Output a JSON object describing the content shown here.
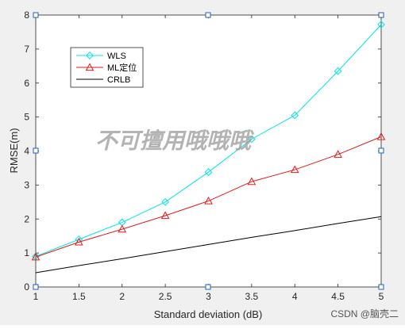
{
  "chart_data": {
    "type": "line",
    "xlabel": "Standard deviation (dB)",
    "ylabel": "RMSE(m)",
    "xlim": [
      1,
      5
    ],
    "ylim": [
      0,
      8
    ],
    "xticks": [
      "1",
      "1.5",
      "2",
      "2.5",
      "3",
      "3.5",
      "4",
      "4.5",
      "5"
    ],
    "yticks": [
      "0",
      "1",
      "2",
      "3",
      "4",
      "5",
      "6",
      "7",
      "8"
    ],
    "grid": false,
    "legend_position": "top-left",
    "x": [
      1,
      1.5,
      2,
      2.5,
      3,
      3.5,
      4,
      4.5,
      5
    ],
    "series": [
      {
        "name": "WLS",
        "color": "#00e5e5",
        "marker": "diamond",
        "values": [
          0.9,
          1.4,
          1.9,
          2.5,
          3.38,
          4.35,
          5.05,
          6.35,
          7.72
        ]
      },
      {
        "name": "ML定位",
        "color": "#e51a1a",
        "marker": "triangle",
        "values": [
          0.88,
          1.32,
          1.7,
          2.1,
          2.53,
          3.1,
          3.45,
          3.9,
          4.42
        ]
      },
      {
        "name": "CRLB",
        "color": "#000000",
        "marker": "none",
        "values": [
          0.42,
          0.63,
          0.83,
          1.04,
          1.25,
          1.46,
          1.66,
          1.87,
          2.07
        ]
      }
    ]
  },
  "watermark": "不可擅用哦哦哦",
  "credit": "CSDN @脑壳二"
}
